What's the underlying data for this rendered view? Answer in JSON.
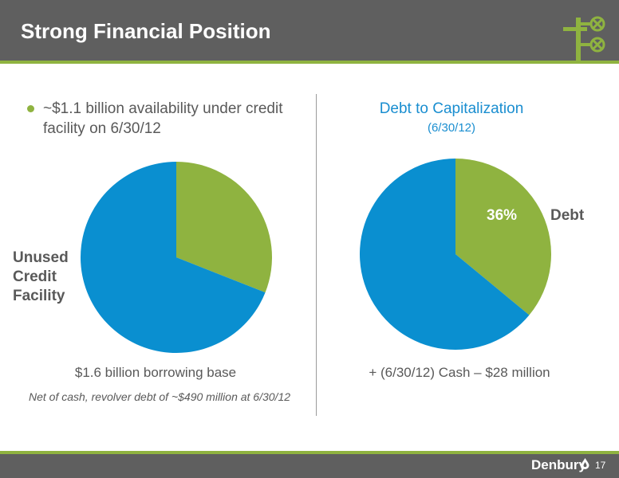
{
  "header": {
    "title": "Strong Financial Position",
    "logo_icon": "wellhead-valve-icon"
  },
  "left_panel": {
    "bullet": "~$1.1 billion availability under credit facility on 6/30/12",
    "slice_label": "Unused Credit Facility",
    "caption": "$1.6 billion borrowing base",
    "note": "Net of cash, revolver debt of ~$490 million at 6/30/12"
  },
  "right_panel": {
    "title": "Debt to Capitalization",
    "subtitle": "(6/30/12)",
    "debt_pct_label": "36%",
    "debt_label": "Debt",
    "caption": "+ (6/30/12) Cash – $28 million"
  },
  "chart_data": [
    {
      "type": "pie",
      "title": "",
      "slices": [
        {
          "label": "",
          "value": 31,
          "color": "#8fb340"
        },
        {
          "label": "Unused Credit Facility",
          "value": 69,
          "color": "#0a8fd0"
        }
      ]
    },
    {
      "type": "pie",
      "title": "Debt to Capitalization",
      "slices": [
        {
          "label": "Debt",
          "value": 36,
          "color": "#8fb340"
        },
        {
          "label": "",
          "value": 64,
          "color": "#0a8fd0"
        }
      ]
    }
  ],
  "footer": {
    "brand": "Denbury",
    "brand_icon": "oil-drop-icon",
    "page_number": "17"
  }
}
